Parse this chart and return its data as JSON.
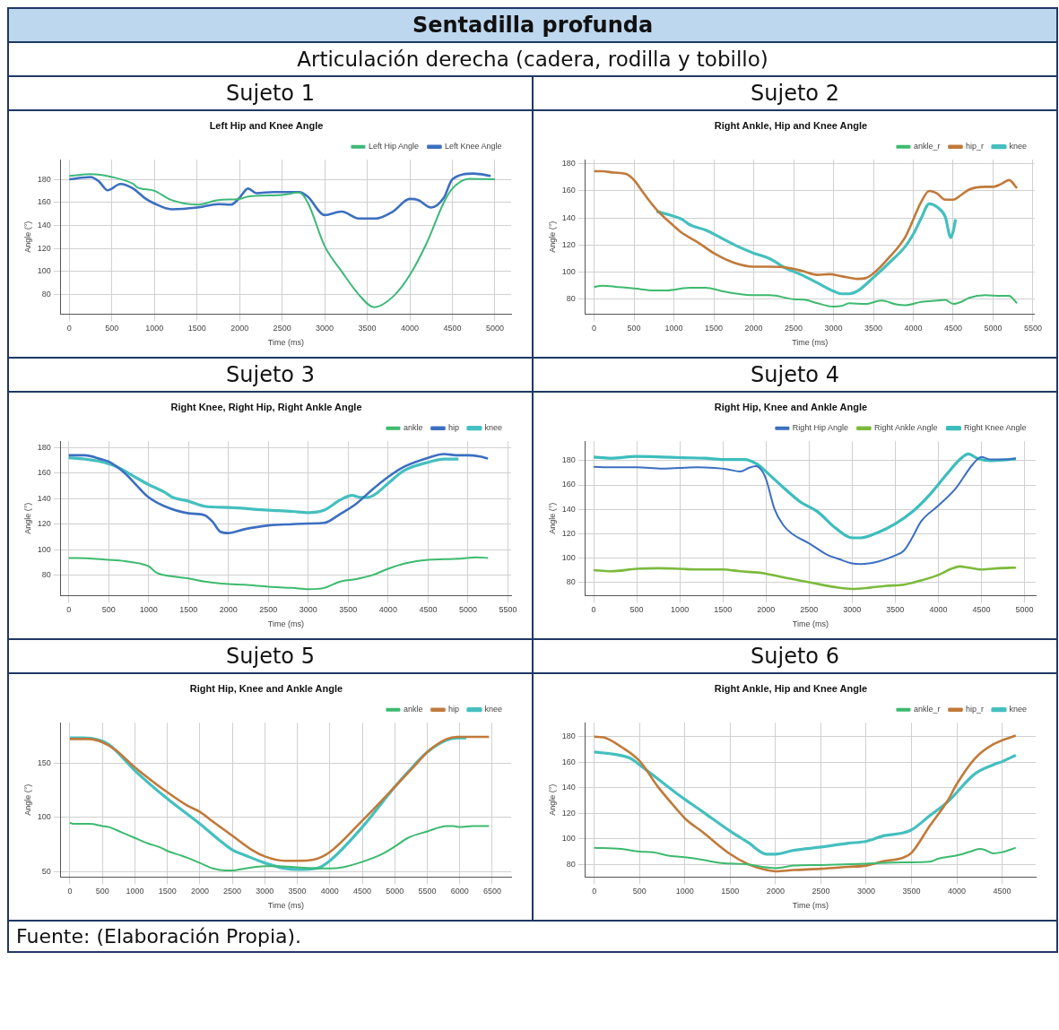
{
  "chart_data": [
    {
      "type": "other",
      "title": "Sentadilla profunda",
      "subtitle": "Articulación derecha (cadera, rodilla y tobillo)",
      "annotations": [
        "Fuente: (Elaboración Propia)."
      ]
    },
    {
      "type": "line",
      "subtitle": "Sujeto 1",
      "title": "Left Hip and Knee Angle",
      "xlabel": "Time (ms)",
      "ylabel": "Angle (°)",
      "legend": "top right",
      "grid": true,
      "xlim": [
        -100,
        5190
      ],
      "ylim": [
        63,
        197
      ],
      "xticks": [
        0,
        500,
        1000,
        1500,
        2000,
        2500,
        3000,
        3500,
        4000,
        4500,
        5000
      ],
      "yticks": [
        80,
        100,
        120,
        140,
        160,
        180
      ],
      "series": [
        {
          "name": "Left Hip Angle",
          "color": "#3cb878",
          "x": [
            0,
            250,
            500,
            750,
            800,
            1000,
            1200,
            1500,
            1750,
            2000,
            2100,
            2500,
            2700,
            2800,
            3000,
            3200,
            3400,
            3580,
            3800,
            4000,
            4200,
            4400,
            4500,
            4700,
            5000
          ],
          "values": [
            183,
            184.5,
            182,
            176,
            173,
            170,
            162,
            158,
            162,
            163,
            165,
            166.5,
            168.5,
            160,
            122,
            100,
            80,
            69,
            78,
            97,
            125,
            160,
            172,
            180.5,
            180
          ]
        },
        {
          "name": "Left Knee Angle",
          "color": "#3b6fc0",
          "x": [
            0,
            250,
            350,
            450,
            600,
            750,
            900,
            1000,
            1200,
            1500,
            1750,
            1900,
            2000,
            2100,
            2200,
            2400,
            2700,
            2800,
            3000,
            3200,
            3400,
            3600,
            3800,
            4000,
            4100,
            4250,
            4400,
            4500,
            4750,
            4950
          ],
          "values": [
            180,
            182,
            178,
            170.5,
            176,
            172,
            163,
            159,
            154,
            155.5,
            158.5,
            158,
            164,
            172,
            168,
            169,
            169,
            165,
            149,
            152,
            146,
            146,
            152,
            163,
            162,
            155.5,
            164,
            180,
            185,
            183
          ]
        }
      ]
    },
    {
      "type": "line",
      "subtitle": "Sujeto 2",
      "title": "Right Ankle, Hip and Knee Angle",
      "xlabel": "Time (ms)",
      "ylabel": "Angle (°)",
      "legend": "top right",
      "grid": true,
      "xlim": [
        -110,
        5520
      ],
      "ylim": [
        69,
        183
      ],
      "xticks": [
        0,
        500,
        1000,
        1500,
        2000,
        2500,
        3000,
        3500,
        4000,
        4500,
        5000,
        5500
      ],
      "yticks": [
        80,
        100,
        120,
        140,
        160,
        180
      ],
      "series": [
        {
          "name": "ankle_r",
          "color": "#3dba6e",
          "x": [
            0,
            100,
            300,
            500,
            750,
            900,
            1200,
            1400,
            1600,
            1800,
            2000,
            2200,
            2500,
            2650,
            2800,
            3000,
            3100,
            3200,
            3400,
            3600,
            3800,
            3900,
            4100,
            4300,
            4400,
            4500,
            4600,
            4700,
            4900,
            5100,
            5200,
            5300
          ],
          "values": [
            89,
            90,
            89,
            88,
            86.5,
            86.5,
            88.5,
            88.5,
            86,
            84,
            83,
            83,
            80,
            79.5,
            77,
            74.5,
            75,
            77,
            76.5,
            79,
            76,
            75.5,
            78,
            79,
            79.5,
            76.5,
            78,
            81,
            83,
            82.5,
            82.5,
            77
          ]
        },
        {
          "name": "hip_r",
          "color": "#c07a3a",
          "x": [
            0,
            100,
            250,
            400,
            500,
            600,
            700,
            800,
            1000,
            1100,
            1300,
            1500,
            1750,
            2000,
            2200,
            2400,
            2600,
            2800,
            2950,
            3100,
            3300,
            3400,
            3500,
            3700,
            3900,
            4100,
            4200,
            4300,
            4400,
            4500,
            4600,
            4700,
            4900,
            5000,
            5100,
            5200,
            5300
          ],
          "values": [
            174.5,
            174.5,
            173.5,
            172.5,
            168,
            160,
            152,
            145,
            134,
            129,
            122,
            114,
            107,
            104,
            104,
            103.5,
            101,
            98,
            98.5,
            97,
            95,
            95.5,
            99,
            111,
            126,
            152,
            160,
            158,
            153.5,
            153.5,
            157,
            161,
            163,
            163,
            165,
            168,
            162
          ]
        },
        {
          "name": "knee",
          "color": "#45bfbf",
          "x": [
            780,
            900,
            1100,
            1200,
            1400,
            1600,
            1800,
            2000,
            2200,
            2400,
            2600,
            2800,
            3000,
            3100,
            3200,
            3300,
            3500,
            3700,
            3900,
            4000,
            4100,
            4200,
            4300,
            4400,
            4470,
            4500,
            4530
          ],
          "values": [
            145,
            143,
            139,
            135,
            131,
            125,
            119,
            114,
            110,
            103,
            98,
            92,
            86,
            84,
            84,
            86,
            96,
            107,
            119,
            128,
            140,
            150.5,
            148,
            141,
            125.5,
            130,
            139
          ]
        }
      ]
    },
    {
      "type": "line",
      "subtitle": "Sujeto 3",
      "title": "Right Knee, Right Hip, Right Ankle Angle",
      "xlabel": "Time (ms)",
      "ylabel": "Angle (°)",
      "legend": "top right",
      "grid": true,
      "xlim": [
        -100,
        5540
      ],
      "ylim": [
        64,
        185
      ],
      "xticks": [
        0,
        500,
        1000,
        1500,
        2000,
        2500,
        3000,
        3500,
        4000,
        4500,
        5000,
        5500
      ],
      "yticks": [
        80,
        100,
        120,
        140,
        160,
        180
      ],
      "series": [
        {
          "name": "ankle",
          "color": "#3dba6e",
          "x": [
            0,
            100,
            500,
            700,
            900,
            1000,
            1100,
            1300,
            1500,
            1700,
            2000,
            2200,
            2500,
            2800,
            3000,
            3200,
            3400,
            3600,
            3800,
            4000,
            4200,
            4500,
            4700,
            4900,
            5100,
            5250
          ],
          "values": [
            93.5,
            93.5,
            92,
            91,
            89,
            87,
            82,
            79,
            77.5,
            75,
            73,
            72.5,
            71,
            70,
            69,
            70,
            75,
            77,
            80,
            85,
            89,
            92,
            92.5,
            93,
            94,
            93.5
          ]
        },
        {
          "name": "hip",
          "color": "#3b6fc0",
          "x": [
            0,
            200,
            400,
            500,
            700,
            900,
            1000,
            1200,
            1500,
            1700,
            1800,
            1900,
            2000,
            2200,
            2500,
            2800,
            3000,
            3200,
            3400,
            3600,
            3800,
            4000,
            4200,
            4500,
            4700,
            4850,
            5000,
            5150,
            5250
          ],
          "values": [
            174,
            174,
            171,
            169,
            160,
            147,
            141,
            134,
            128.5,
            127,
            122,
            114,
            113,
            116,
            119,
            120,
            120.5,
            121,
            128,
            136,
            147,
            157,
            165,
            172,
            175,
            174,
            174,
            173,
            171.5
          ]
        },
        {
          "name": "knee",
          "color": "#45bfbf",
          "x": [
            0,
            200,
            400,
            600,
            800,
            1000,
            1200,
            1300,
            1500,
            1700,
            2000,
            2500,
            2800,
            3000,
            3200,
            3400,
            3550,
            3650,
            3750,
            3850,
            4000,
            4200,
            4500,
            4700,
            4880
          ],
          "values": [
            172,
            171,
            169,
            165,
            158,
            151,
            145,
            141,
            138,
            134,
            133,
            131,
            130,
            129,
            131,
            139,
            142.5,
            141,
            141,
            144,
            152,
            162,
            168.5,
            171,
            171
          ]
        }
      ]
    },
    {
      "type": "line",
      "subtitle": "Sujeto 4",
      "title": "Right Hip, Knee and Ankle Angle",
      "xlabel": "Time (ms)",
      "ylabel": "Angle (°)",
      "legend": "top right",
      "grid": true,
      "xlim": [
        -96,
        5130
      ],
      "ylim": [
        69,
        196
      ],
      "xticks": [
        0,
        500,
        1000,
        1500,
        2000,
        2500,
        3000,
        3500,
        4000,
        4500,
        5000
      ],
      "yticks": [
        80,
        100,
        120,
        140,
        160,
        180
      ],
      "series": [
        {
          "name": "Right Hip Angle",
          "color": "#3b6fc0",
          "x": [
            0,
            200,
            500,
            800,
            1000,
            1200,
            1400,
            1550,
            1700,
            1800,
            1880,
            1950,
            2000,
            2100,
            2200,
            2300,
            2500,
            2700,
            2850,
            3000,
            3100,
            3300,
            3500,
            3600,
            3700,
            3800,
            4000,
            4200,
            4400,
            4500,
            4600,
            4800,
            4900
          ],
          "values": [
            175,
            174.5,
            174.5,
            173.5,
            174,
            174.5,
            174,
            173,
            171,
            174,
            175.5,
            172,
            165,
            140,
            127,
            120,
            112,
            103,
            99,
            95.5,
            95,
            97,
            102,
            106,
            117,
            130,
            143,
            157,
            177,
            183,
            181,
            181,
            182
          ]
        },
        {
          "name": "Right Ankle Angle",
          "color": "#7cba3c",
          "x": [
            0,
            200,
            500,
            750,
            1000,
            1200,
            1500,
            1700,
            1900,
            2000,
            2200,
            2500,
            2800,
            3000,
            3200,
            3400,
            3600,
            3800,
            4000,
            4150,
            4250,
            4350,
            4500,
            4700,
            4900
          ],
          "values": [
            90,
            89,
            91,
            91.5,
            91,
            90.5,
            90.5,
            89,
            88,
            87,
            84,
            80,
            76,
            74.5,
            75.5,
            77,
            78,
            81.5,
            86,
            91,
            93,
            92,
            90.5,
            91.5,
            92
          ]
        },
        {
          "name": "Right Knee Angle",
          "color": "#3cbdbd",
          "x": [
            0,
            200,
            500,
            800,
            1000,
            1300,
            1500,
            1750,
            1900,
            2000,
            2200,
            2400,
            2600,
            2800,
            3000,
            3100,
            3300,
            3500,
            3700,
            3900,
            4100,
            4250,
            4350,
            4450,
            4600,
            4750,
            4900
          ],
          "values": [
            183,
            182,
            183.5,
            183,
            182.5,
            182,
            181,
            181,
            177,
            171,
            158,
            146,
            138,
            125,
            116.5,
            116.5,
            121,
            128,
            138,
            152,
            169,
            181,
            185.5,
            182,
            180,
            180.5,
            181.5
          ]
        }
      ]
    },
    {
      "type": "line",
      "subtitle": "Sujeto 5",
      "title": "Right Hip, Knee and Ankle Angle",
      "xlabel": "Time (ms)",
      "ylabel": "Angle (°)",
      "legend": "top right",
      "grid": true,
      "xlim": [
        -140,
        6790
      ],
      "ylim": [
        45,
        187
      ],
      "xticks": [
        0,
        500,
        1000,
        1500,
        2000,
        2500,
        3000,
        3500,
        4000,
        4500,
        5000,
        5500,
        6000,
        6500
      ],
      "yticks": [
        50,
        100,
        150
      ],
      "series": [
        {
          "name": "ankle",
          "color": "#3dba6e",
          "x": [
            0,
            50,
            300,
            500,
            600,
            800,
            1000,
            1200,
            1400,
            1500,
            1700,
            1800,
            2000,
            2200,
            2400,
            2500,
            2700,
            3000,
            3200,
            3500,
            3800,
            4000,
            4200,
            4500,
            4800,
            5000,
            5200,
            5500,
            5800,
            5900,
            6000,
            6200,
            6450
          ],
          "values": [
            95,
            94,
            94,
            92,
            91,
            86,
            81,
            76,
            72,
            69,
            65,
            63,
            58,
            53,
            51,
            51,
            53,
            55,
            55,
            54,
            53,
            53,
            54,
            59,
            66,
            73,
            81,
            87,
            92,
            92,
            91,
            92,
            92
          ]
        },
        {
          "name": "hip",
          "color": "#c07a3a",
          "x": [
            0,
            300,
            500,
            700,
            1000,
            1500,
            1800,
            2000,
            2200,
            2500,
            2800,
            3000,
            3300,
            3500,
            3750,
            4000,
            4500,
            5000,
            5300,
            5500,
            5800,
            6000,
            6450
          ],
          "values": [
            172,
            172,
            169,
            162,
            146,
            123,
            111,
            105,
            96,
            83,
            70,
            64,
            60,
            60,
            61,
            68,
            97,
            128,
            147,
            160,
            172,
            174,
            174
          ]
        },
        {
          "name": "knee",
          "color": "#45bfbf",
          "x": [
            0,
            200,
            450,
            600,
            1000,
            1500,
            2000,
            2300,
            2500,
            2700,
            3000,
            3300,
            3500,
            3800,
            4000,
            4500,
            5000,
            5300,
            5500,
            5800,
            6000,
            6100
          ],
          "values": [
            173,
            173,
            171,
            167,
            143,
            117,
            94,
            79,
            70,
            65,
            58,
            53,
            52,
            53,
            60,
            91,
            128,
            148,
            160,
            171,
            173,
            173
          ]
        }
      ]
    },
    {
      "type": "line",
      "subtitle": "Sujeto 6",
      "title": "Right Ankle, Hip and Knee Angle",
      "xlabel": "Time (ms)",
      "ylabel": "Angle (°)",
      "legend": "top right",
      "grid": true,
      "xlim": [
        -98,
        4870
      ],
      "ylim": [
        70,
        191
      ],
      "xticks": [
        0,
        500,
        1000,
        1500,
        2000,
        2500,
        3000,
        3500,
        4000,
        4500
      ],
      "yticks": [
        80,
        100,
        120,
        140,
        160,
        180
      ],
      "series": [
        {
          "name": "ankle_r",
          "color": "#3dba6e",
          "x": [
            0,
            300,
            500,
            650,
            800,
            1000,
            1200,
            1400,
            1700,
            1850,
            2000,
            2200,
            2500,
            3000,
            3400,
            3700,
            3800,
            4000,
            4150,
            4250,
            4320,
            4400,
            4500,
            4650
          ],
          "values": [
            93,
            92,
            90,
            89.5,
            87,
            85.5,
            83.5,
            81,
            80,
            78,
            77,
            79,
            79.5,
            80.5,
            81.5,
            82,
            84.5,
            87,
            90,
            92,
            91,
            88.5,
            89.5,
            93
          ]
        },
        {
          "name": "hip_r",
          "color": "#c07a3a",
          "x": [
            0,
            100,
            300,
            500,
            700,
            900,
            1000,
            1200,
            1500,
            1700,
            1900,
            2000,
            2200,
            2500,
            2800,
            3000,
            3200,
            3400,
            3500,
            3700,
            3900,
            4000,
            4200,
            4400,
            4650
          ],
          "values": [
            180,
            179.5,
            172,
            161,
            141,
            124,
            116,
            105,
            88,
            80,
            75.5,
            74.5,
            75.5,
            76.5,
            78,
            79,
            82.5,
            85,
            89,
            110,
            130,
            143,
            163,
            174,
            181
          ]
        },
        {
          "name": "knee",
          "color": "#45bfbf",
          "x": [
            0,
            200,
            400,
            500,
            700,
            900,
            1200,
            1500,
            1700,
            1900,
            2000,
            2200,
            2500,
            2800,
            3000,
            3200,
            3400,
            3500,
            3700,
            3900,
            4200,
            4400,
            4500,
            4650
          ],
          "values": [
            168,
            166.5,
            163,
            158,
            147,
            136,
            121,
            106,
            97,
            88,
            88,
            91,
            93.5,
            96.5,
            98,
            102.5,
            104.5,
            107,
            118,
            129,
            151,
            158,
            160.5,
            165.5
          ]
        }
      ]
    }
  ]
}
